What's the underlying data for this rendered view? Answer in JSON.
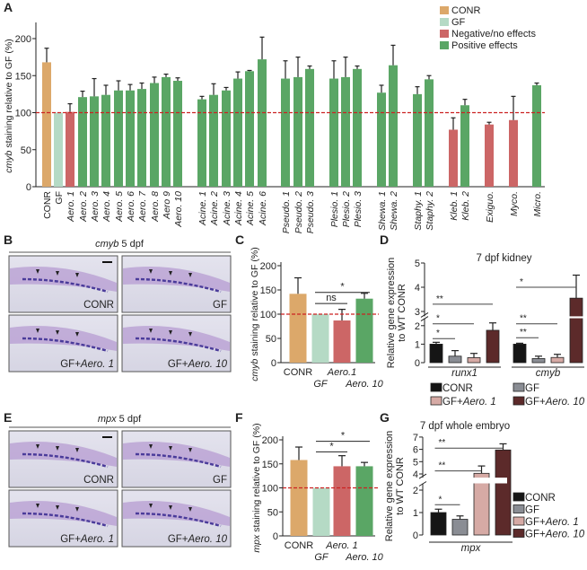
{
  "colors": {
    "conr": "#dca86a",
    "gf": "#b5dac5",
    "negative": "#cc6666",
    "positive": "#5aa665",
    "ref_line": "#cc2222",
    "q_conr": "#151515",
    "q_gf": "#8a8d94",
    "q_aero1": "#d6aaa5",
    "q_aero10": "#5c2a2a"
  },
  "panels": {
    "A": "A",
    "B": "B",
    "C": "C",
    "D": "D",
    "E": "E",
    "F": "F",
    "G": "G"
  },
  "panel_b": {
    "title_italic": "cmyb",
    "title_rest": " 5 dpf",
    "labels": [
      "CONR",
      "GF",
      "GF+",
      "GF+"
    ],
    "label_italic": [
      "",
      "",
      "Aero. 1",
      "Aero. 10"
    ]
  },
  "panel_e": {
    "title_italic": "mpx",
    "title_rest": " 5 dpf",
    "labels": [
      "CONR",
      "GF",
      "GF+",
      "GF+"
    ],
    "label_italic": [
      "",
      "",
      "Aero. 1",
      "Aero. 10"
    ]
  },
  "chart_data": [
    {
      "panel": "A",
      "type": "bar",
      "ylabel_italic": "cmyb",
      "ylabel_rest": " staining relative to GF (%)",
      "ylim": [
        0,
        220
      ],
      "yticks": [
        "0",
        "50",
        "100",
        "150",
        "200"
      ],
      "ref_line": 100,
      "legend": [
        {
          "label": "CONR",
          "color_key": "conr"
        },
        {
          "label": "GF",
          "color_key": "gf"
        },
        {
          "label": "Negative/no effects",
          "color_key": "negative"
        },
        {
          "label": "Positive effects",
          "color_key": "positive"
        }
      ],
      "legend_position": "top-right",
      "categories": [
        "CONR",
        "GF",
        "Aero. 1",
        "Aero. 2",
        "Aero. 3",
        "Aero. 4",
        "Aero. 5",
        "Aero. 6",
        "Aero. 7",
        "Aero. 8",
        "Aero 9",
        "Aero. 10",
        "Acine. 1",
        "Acine. 2",
        "Acine. 3",
        "Acine. 4",
        "Acine. 5",
        "Acine. 6",
        "Pseudo. 1",
        "Pseudo. 2",
        "Pseudo. 3",
        "Plesio. 1",
        "Plesio. 2",
        "Plesio. 3",
        "Shewa. 1",
        "Shewa. 2",
        "Staphy. 1",
        "Staphy. 2",
        "Kleb. 1",
        "Kleb. 2",
        "Exiguo.",
        "Myco.",
        "Micro."
      ],
      "values": [
        168,
        100,
        101,
        121,
        122,
        124,
        130,
        130,
        132,
        140,
        148,
        143,
        118,
        124,
        130,
        146,
        156,
        172,
        146,
        148,
        159,
        146,
        148,
        159,
        127,
        164,
        125,
        145,
        77,
        110,
        84,
        90,
        137
      ],
      "error_upper": [
        187,
        null,
        112,
        129,
        146,
        137,
        143,
        138,
        140,
        148,
        152,
        147,
        122,
        139,
        134,
        155,
        157,
        202,
        170,
        175,
        163,
        170,
        175,
        163,
        137,
        191,
        135,
        150,
        93,
        118,
        87,
        122,
        140
      ],
      "groups": [
        "conr",
        "gf",
        "negative",
        "positive",
        "positive",
        "positive",
        "positive",
        "positive",
        "positive",
        "positive",
        "positive",
        "positive",
        "positive",
        "positive",
        "positive",
        "positive",
        "positive",
        "positive",
        "positive",
        "positive",
        "positive",
        "positive",
        "positive",
        "positive",
        "positive",
        "positive",
        "positive",
        "positive",
        "negative",
        "positive",
        "negative",
        "negative",
        "positive"
      ]
    },
    {
      "panel": "C",
      "type": "bar",
      "ylabel_italic": "cmyb",
      "ylabel_rest": " staining relative to GF (%)",
      "ylim": [
        0,
        200
      ],
      "yticks": [
        "0",
        "50",
        "100",
        "150",
        "200"
      ],
      "ref_line": 100,
      "categories": [
        "CONR",
        "GF",
        "Aero.1",
        "Aero. 10"
      ],
      "italic": [
        false,
        true,
        true,
        true
      ],
      "values": [
        142,
        100,
        87,
        132
      ],
      "error_upper": [
        175,
        null,
        110,
        143
      ],
      "colors": [
        "conr",
        "gf",
        "negative",
        "positive"
      ],
      "significance": [
        {
          "from": 1,
          "to": 3,
          "label": "*",
          "level": 145
        },
        {
          "from": 1,
          "to": 2,
          "label": "ns",
          "level": 122
        }
      ]
    },
    {
      "panel": "D",
      "type": "bar",
      "title": "7 dpf kidney",
      "ylabel": "Relative gene expression to WT CONR",
      "ylabel_lines": [
        "Relative gene expression",
        "to WT CONR"
      ],
      "yticks": [
        "0",
        "1",
        "2",
        "3",
        "4",
        "5"
      ],
      "axis_break": [
        2.4,
        2.8
      ],
      "groups": [
        "runx1",
        "cmyb"
      ],
      "series": [
        {
          "name": "CONR",
          "values": [
            1.0,
            1.0
          ],
          "error_upper": [
            1.1,
            1.05
          ],
          "color_key": "q_conr"
        },
        {
          "name": "GF",
          "values": [
            0.35,
            0.22
          ],
          "error_upper": [
            0.65,
            0.35
          ],
          "color_key": "q_gf"
        },
        {
          "name": "GF+",
          "name_italic": "Aero. 1",
          "values": [
            0.27,
            0.28
          ],
          "error_upper": [
            0.5,
            0.45
          ],
          "color_key": "q_aero1"
        },
        {
          "name": "GF+",
          "name_italic": "Aero. 10",
          "values": [
            1.75,
            3.55
          ],
          "error_upper": [
            2.15,
            4.5
          ],
          "color_key": "q_aero10"
        }
      ],
      "significance": [
        {
          "group": 0,
          "from": 0,
          "to": 3,
          "label": "**",
          "level": 3.3
        },
        {
          "group": 0,
          "from": 0,
          "to": 2,
          "label": "*",
          "level": 2.1
        },
        {
          "group": 0,
          "from": 0,
          "to": 1,
          "label": "*",
          "level": 1.3
        },
        {
          "group": 1,
          "from": 0,
          "to": 3,
          "label": "*",
          "level": 4.0
        },
        {
          "group": 1,
          "from": 0,
          "to": 2,
          "label": "**",
          "level": 2.1
        },
        {
          "group": 1,
          "from": 0,
          "to": 1,
          "label": "**",
          "level": 1.35
        }
      ]
    },
    {
      "panel": "F",
      "type": "bar",
      "ylabel_italic": "mpx",
      "ylabel_rest": " staining relative to GF (%)",
      "ylim": [
        0,
        200
      ],
      "yticks": [
        "0",
        "50",
        "100",
        "150",
        "200"
      ],
      "ref_line": 100,
      "categories": [
        "CONR",
        "GF",
        "Aero. 1",
        "Aero. 10"
      ],
      "italic": [
        false,
        true,
        true,
        true
      ],
      "values": [
        158,
        100,
        145,
        145
      ],
      "error_upper": [
        185,
        null,
        167,
        153
      ],
      "colors": [
        "conr",
        "gf",
        "negative",
        "positive"
      ],
      "significance": [
        {
          "from": 1,
          "to": 3,
          "label": "*",
          "level": 197
        },
        {
          "from": 1,
          "to": 2,
          "label": "*",
          "level": 175
        }
      ]
    },
    {
      "panel": "G",
      "type": "bar",
      "title": "7 dpf whole embryo",
      "ylabel": "Relative gene expression to WT CONR",
      "ylabel_lines": [
        "Relative gene expression",
        "to WT CONR"
      ],
      "yticks": [
        "0",
        "1",
        "2",
        "4",
        "5",
        "6",
        "7"
      ],
      "axis_break": [
        2.3,
        3.7
      ],
      "groups": [
        "mpx"
      ],
      "series": [
        {
          "name": "CONR",
          "values": [
            1.0
          ],
          "error_upper": [
            1.15
          ],
          "color_key": "q_conr"
        },
        {
          "name": "GF",
          "values": [
            0.7
          ],
          "error_upper": [
            0.85
          ],
          "color_key": "q_gf"
        },
        {
          "name": "GF+",
          "name_italic": "Aero. 1",
          "values": [
            4.05
          ],
          "error_upper": [
            4.65
          ],
          "color_key": "q_aero1"
        },
        {
          "name": "GF+",
          "name_italic": "Aero. 10",
          "values": [
            5.95
          ],
          "error_upper": [
            6.45
          ],
          "color_key": "q_aero10"
        }
      ],
      "significance": [
        {
          "group": 0,
          "from": 0,
          "to": 3,
          "label": "**",
          "level": 6.1
        },
        {
          "group": 0,
          "from": 0,
          "to": 2,
          "label": "**",
          "level": 4.25
        },
        {
          "group": 0,
          "from": 0,
          "to": 1,
          "label": "*",
          "level": 1.35
        }
      ]
    }
  ]
}
